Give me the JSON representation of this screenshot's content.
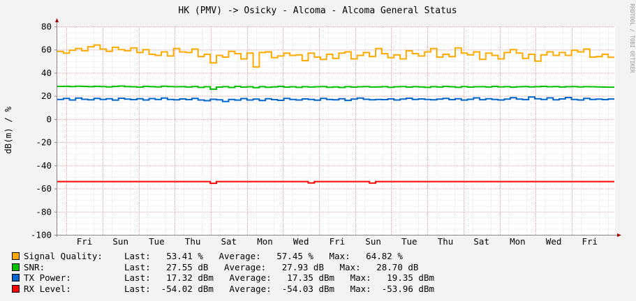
{
  "chart_data": {
    "type": "line",
    "title": "HK (PMV) -> Osicky - Alcoma - Alcoma General Status",
    "ylabel": "dB(m) / %",
    "watermark": "RRDTOOL / TOBI OETIKER",
    "ylim": [
      -100,
      80
    ],
    "y_ticks": [
      80,
      60,
      40,
      20,
      0,
      -20,
      -40,
      -60,
      -80,
      -100
    ],
    "y_tick_labels": [
      "80",
      "60",
      "40",
      "20",
      "0",
      "-20",
      "-40",
      "-60",
      "-80",
      "-100"
    ],
    "x_tick_labels": [
      "Fri",
      "Sun",
      "Tue",
      "Thu",
      "Sat",
      "Mon",
      "Wed",
      "Fri",
      "Sun",
      "Tue",
      "Thu",
      "Sat",
      "Mon",
      "Wed",
      "Fri"
    ],
    "grid": true,
    "legend_position": "bottom",
    "series": [
      {
        "name": "Signal Quality:",
        "color": "#ffaa00",
        "stats": "Last:   53.41 %   Average:   57.45 %   Max:   64.82 %",
        "values": [
          58.5,
          57.0,
          59.5,
          61.0,
          59.0,
          62.5,
          64.0,
          60.5,
          58.5,
          62.0,
          60.0,
          59.0,
          61.5,
          57.5,
          60.0,
          56.0,
          55.0,
          58.0,
          54.5,
          61.0,
          58.0,
          57.5,
          60.5,
          54.0,
          56.0,
          48.5,
          55.0,
          53.5,
          58.5,
          56.5,
          52.0,
          57.0,
          45.0,
          57.5,
          58.0,
          53.0,
          54.5,
          57.0,
          55.0,
          55.5,
          50.5,
          57.0,
          53.5,
          51.5,
          56.0,
          52.5,
          57.0,
          58.0,
          52.0,
          55.0,
          57.5,
          54.0,
          61.0,
          56.5,
          53.0,
          55.5,
          52.0,
          59.0,
          56.5,
          54.5,
          58.0,
          61.0,
          53.5,
          56.0,
          54.0,
          61.5,
          57.0,
          55.5,
          58.0,
          51.5,
          57.0,
          55.0,
          52.0,
          57.5,
          60.0,
          57.0,
          52.5,
          56.0,
          50.0,
          55.5,
          58.0,
          55.0,
          57.5,
          55.0,
          59.5,
          58.0,
          60.5,
          53.5,
          54.0,
          56.0,
          53.4
        ]
      },
      {
        "name": "SNR:",
        "color": "#00c000",
        "stats": "Last:   27.55 dB   Average:   27.93 dB   Max:   28.70 dB",
        "values": [
          28.2,
          28.3,
          28.1,
          28.4,
          28.2,
          28.0,
          28.3,
          28.1,
          27.8,
          28.2,
          28.5,
          28.1,
          27.9,
          27.6,
          28.2,
          28.0,
          27.8,
          28.4,
          28.1,
          27.9,
          28.0,
          27.7,
          28.1,
          27.4,
          27.9,
          25.8,
          27.6,
          28.0,
          27.3,
          28.2,
          27.6,
          27.9,
          27.2,
          28.0,
          27.5,
          27.8,
          28.2,
          27.6,
          27.9,
          27.4,
          28.0,
          27.7,
          27.9,
          28.1,
          27.5,
          27.8,
          27.3,
          28.0,
          27.6,
          27.9,
          28.1,
          27.7,
          27.8,
          28.0,
          27.5,
          27.9,
          28.1,
          27.6,
          28.0,
          27.8,
          27.4,
          28.0,
          27.7,
          28.2,
          27.9,
          27.5,
          28.1,
          27.6,
          27.9,
          28.0,
          27.7,
          28.2,
          27.8,
          28.0,
          27.6,
          27.9,
          28.1,
          27.8,
          28.0,
          28.2,
          27.9,
          28.1,
          27.7,
          28.0,
          28.1,
          27.8,
          28.0,
          27.9,
          27.8,
          27.6,
          27.55
        ]
      },
      {
        "name": "TX Power:",
        "color": "#0066cc",
        "stats": "Last:   17.32 dBm   Average:   17.35 dBm   Max:   19.35 dBm",
        "values": [
          17.0,
          17.8,
          16.5,
          18.2,
          17.1,
          16.6,
          17.9,
          16.9,
          17.6,
          16.4,
          18.0,
          17.2,
          16.8,
          17.5,
          16.5,
          17.7,
          16.9,
          18.1,
          17.0,
          16.6,
          17.4,
          16.8,
          17.9,
          16.5,
          15.9,
          17.1,
          16.6,
          15.2,
          17.0,
          16.4,
          17.7,
          16.5,
          17.3,
          16.0,
          17.6,
          16.8,
          16.2,
          17.9,
          17.0,
          16.5,
          17.4,
          16.9,
          16.3,
          17.8,
          17.0,
          16.6,
          17.5,
          16.1,
          17.3,
          18.2,
          17.1,
          16.6,
          17.0,
          16.8,
          17.4,
          16.5,
          17.2,
          18.0,
          16.9,
          17.4,
          17.0,
          16.6,
          17.3,
          17.9,
          16.8,
          17.5,
          16.4,
          17.1,
          18.3,
          16.7,
          17.6,
          17.0,
          16.5,
          17.3,
          18.5,
          17.2,
          16.8,
          19.0,
          17.6,
          16.9,
          18.3,
          16.6,
          17.4,
          18.6,
          17.0,
          16.5,
          17.8,
          16.9,
          17.3,
          16.8,
          17.32
        ]
      },
      {
        "name": "RX Level:",
        "color": "#ff0000",
        "stats": "Last:  -54.02 dBm   Average:  -54.03 dBm   Max:  -53.96 dBm",
        "values": [
          -54.0,
          -54.0,
          -54.0,
          -54.0,
          -54.0,
          -54.0,
          -54.0,
          -54.0,
          -54.0,
          -54.0,
          -54.0,
          -54.0,
          -54.0,
          -54.0,
          -54.0,
          -54.0,
          -54.0,
          -54.0,
          -54.0,
          -54.0,
          -54.0,
          -54.0,
          -54.0,
          -54.0,
          -54.0,
          -55.5,
          -54.0,
          -54.0,
          -54.0,
          -54.0,
          -54.0,
          -54.0,
          -54.0,
          -54.0,
          -54.0,
          -54.0,
          -54.0,
          -54.0,
          -54.0,
          -54.0,
          -54.0,
          -55.2,
          -54.0,
          -54.0,
          -54.0,
          -54.0,
          -54.0,
          -54.0,
          -54.0,
          -54.0,
          -54.0,
          -55.3,
          -54.0,
          -54.0,
          -54.0,
          -54.0,
          -54.0,
          -54.0,
          -54.0,
          -54.0,
          -54.0,
          -54.0,
          -54.0,
          -54.0,
          -54.0,
          -54.0,
          -54.0,
          -54.0,
          -54.0,
          -54.0,
          -54.0,
          -54.0,
          -54.0,
          -54.0,
          -54.0,
          -54.0,
          -54.0,
          -54.0,
          -54.0,
          -54.0,
          -54.0,
          -54.0,
          -54.0,
          -54.0,
          -54.0,
          -54.0,
          -54.0,
          -54.0,
          -54.0,
          -54.0,
          -54.02
        ]
      }
    ]
  }
}
